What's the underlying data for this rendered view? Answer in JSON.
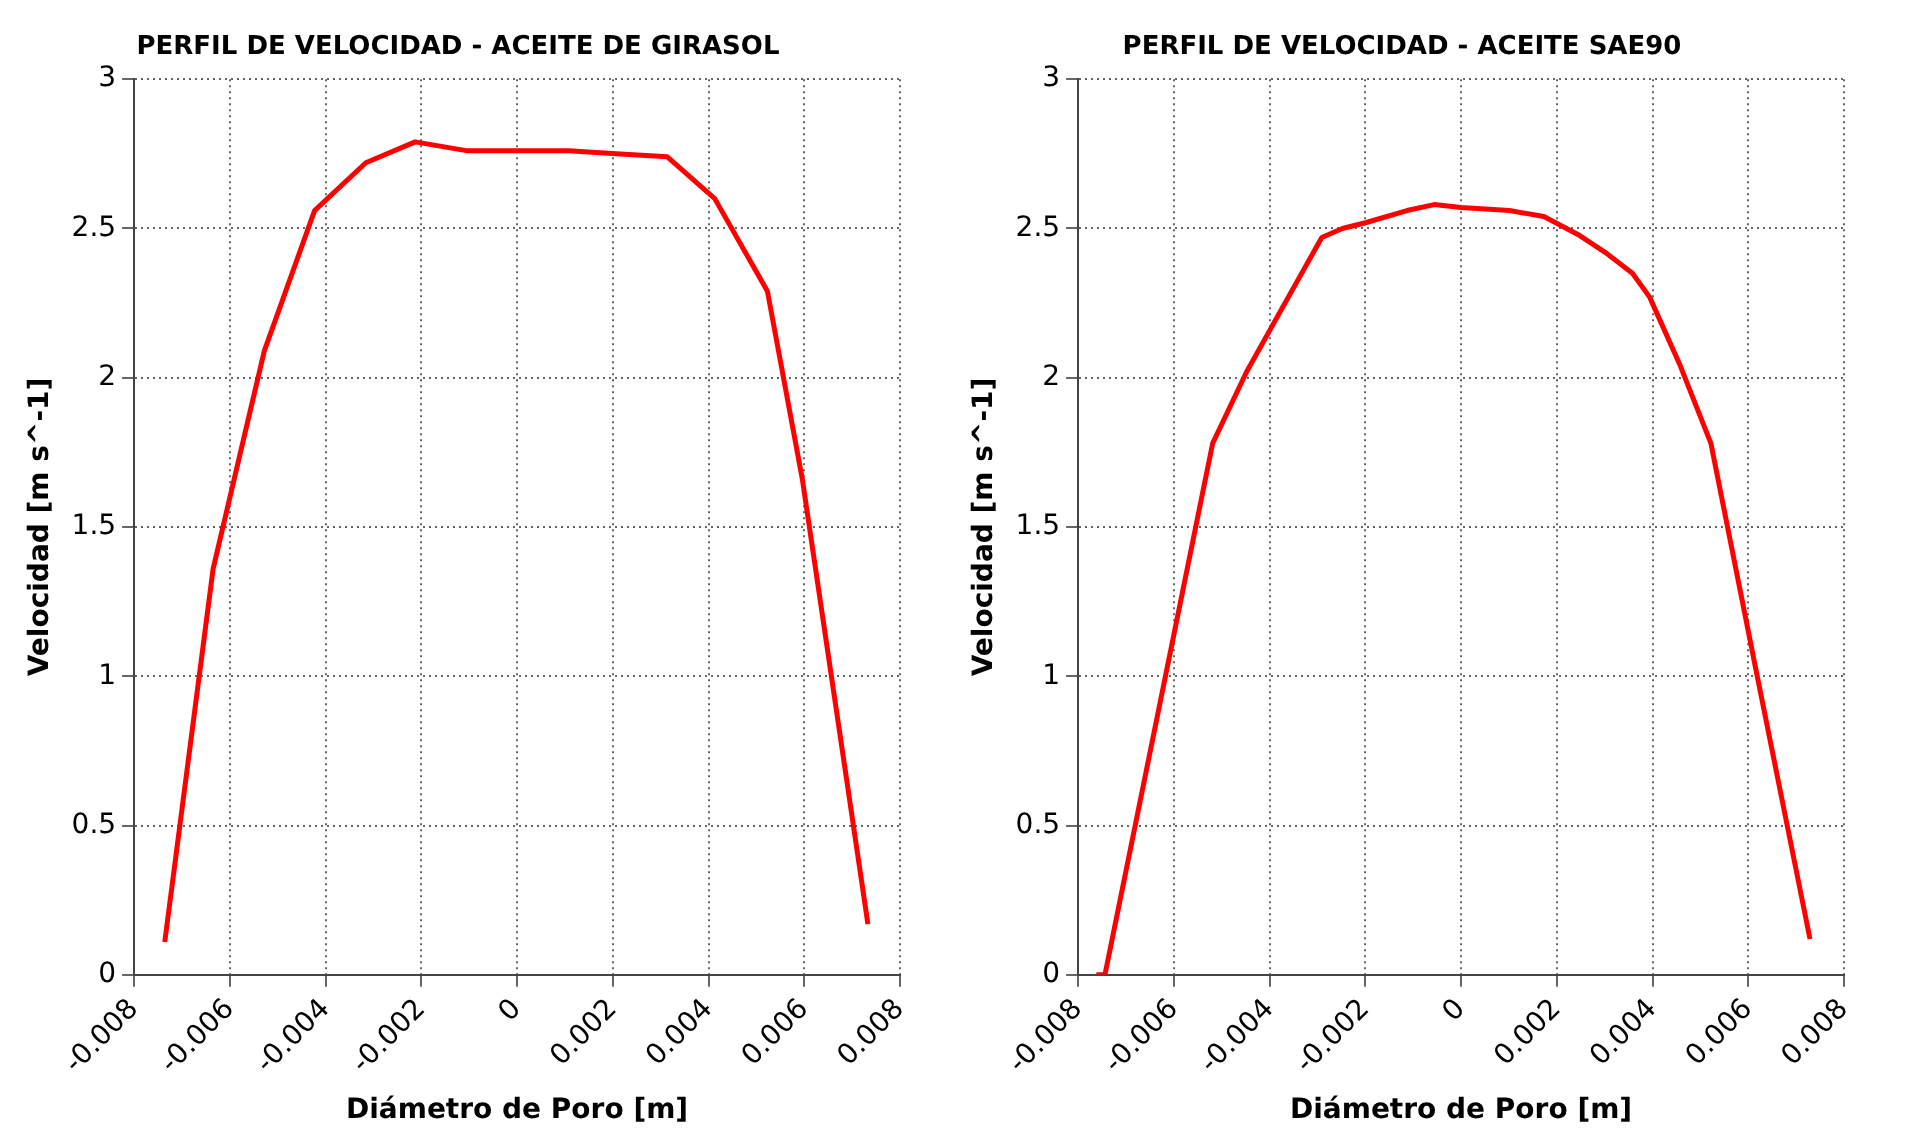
{
  "chart_data": [
    {
      "type": "line",
      "title": "PERFIL DE VELOCIDAD - ACEITE DE GIRASOL",
      "xlabel": "Diámetro de Poro [m]",
      "ylabel": "Velocidad [m s^-1]",
      "x": [
        -0.00736,
        -0.00635,
        -0.00528,
        -0.00423,
        -0.00316,
        -0.00213,
        -0.00103,
        0.0,
        0.00108,
        0.00207,
        0.00314,
        0.00413,
        0.00523,
        0.00596,
        0.00733
      ],
      "series": [
        {
          "color": "#ff0000",
          "values": [
            0.11,
            1.36,
            2.09,
            2.56,
            2.72,
            2.79,
            2.76,
            2.76,
            2.76,
            2.75,
            2.74,
            2.6,
            2.29,
            1.66,
            0.17
          ]
        }
      ],
      "xlim": [
        -0.008,
        0.008
      ],
      "xticks": [
        -0.008,
        -0.006,
        -0.004,
        -0.002,
        0,
        0.002,
        0.004,
        0.006,
        0.008
      ],
      "ylim": [
        0,
        3
      ],
      "yticks": [
        0,
        0.5,
        1,
        1.5,
        2,
        2.5,
        3
      ],
      "grid": true,
      "marker": "none",
      "line_style": "solid"
    },
    {
      "type": "line",
      "title": "PERFIL DE VELOCIDAD - ACEITE SAE90",
      "xlabel": "Diámetro de Poro [m]",
      "ylabel": "Velocidad [m s^-1]",
      "x": [
        -0.00762,
        -0.00744,
        -0.00519,
        -0.00448,
        -0.00291,
        -0.00248,
        -0.00198,
        -0.00113,
        -0.00056,
        0.0,
        0.00101,
        0.00173,
        0.00244,
        0.00301,
        0.00358,
        0.00394,
        0.00458,
        0.00522,
        0.00615,
        0.00729
      ],
      "series": [
        {
          "color": "#ff0000",
          "values": [
            0,
            0,
            1.78,
            2.02,
            2.47,
            2.5,
            2.52,
            2.56,
            2.58,
            2.57,
            2.56,
            2.54,
            2.48,
            2.42,
            2.35,
            2.27,
            2.04,
            1.78,
            1.03,
            0.12
          ]
        }
      ],
      "xlim": [
        -0.008,
        0.008
      ],
      "xticks": [
        -0.008,
        -0.006,
        -0.004,
        -0.002,
        0,
        0.002,
        0.004,
        0.006,
        0.008
      ],
      "ylim": [
        0,
        3
      ],
      "yticks": [
        0,
        0.5,
        1,
        1.5,
        2,
        2.5,
        3
      ],
      "grid": true,
      "marker": "none",
      "line_style": "solid"
    }
  ]
}
